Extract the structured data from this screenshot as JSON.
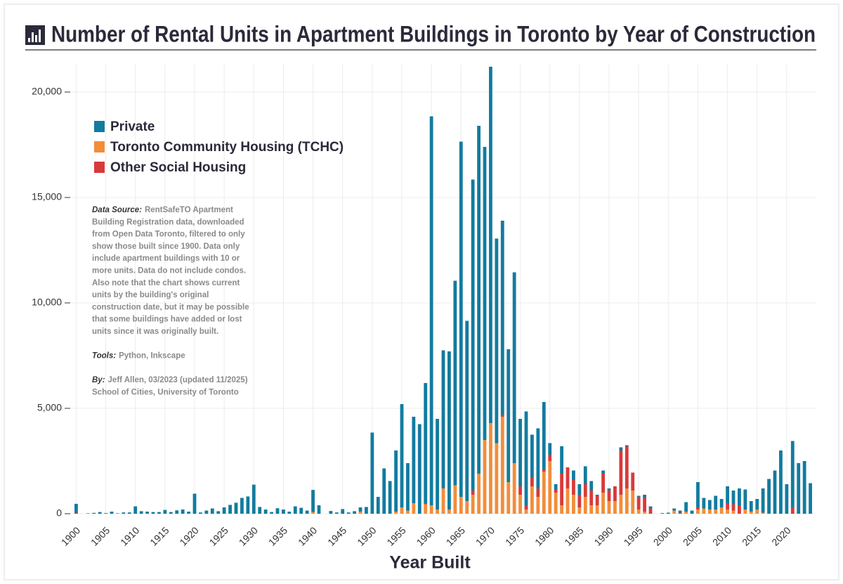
{
  "chart_data": {
    "type": "stacked_bar",
    "title": "Number of Rental Units in Apartment Buildings in Toronto by Year of Construction",
    "x_label": "Year Built",
    "x": [
      1900,
      1901,
      1902,
      1903,
      1904,
      1905,
      1906,
      1907,
      1908,
      1909,
      1910,
      1911,
      1912,
      1913,
      1914,
      1915,
      1916,
      1917,
      1918,
      1919,
      1920,
      1921,
      1922,
      1923,
      1924,
      1925,
      1926,
      1927,
      1928,
      1929,
      1930,
      1931,
      1932,
      1933,
      1934,
      1935,
      1936,
      1937,
      1938,
      1939,
      1940,
      1941,
      1942,
      1943,
      1944,
      1945,
      1946,
      1947,
      1948,
      1949,
      1950,
      1951,
      1952,
      1953,
      1954,
      1955,
      1956,
      1957,
      1958,
      1959,
      1960,
      1961,
      1962,
      1963,
      1964,
      1965,
      1966,
      1967,
      1968,
      1969,
      1970,
      1971,
      1972,
      1973,
      1974,
      1975,
      1976,
      1977,
      1978,
      1979,
      1980,
      1981,
      1982,
      1983,
      1984,
      1985,
      1986,
      1987,
      1988,
      1989,
      1990,
      1991,
      1992,
      1993,
      1994,
      1995,
      1996,
      1997,
      1998,
      1999,
      2000,
      2001,
      2002,
      2003,
      2004,
      2005,
      2006,
      2007,
      2008,
      2009,
      2010,
      2011,
      2012,
      2013,
      2014,
      2015,
      2016,
      2017,
      2018,
      2019,
      2020,
      2021,
      2022,
      2023,
      2024
    ],
    "series": [
      {
        "name": "Private",
        "color": "#127b9f",
        "values": [
          420,
          0,
          20,
          40,
          80,
          30,
          100,
          20,
          60,
          60,
          350,
          120,
          100,
          80,
          80,
          180,
          80,
          160,
          200,
          100,
          950,
          60,
          150,
          250,
          120,
          300,
          420,
          520,
          750,
          820,
          1380,
          320,
          200,
          80,
          260,
          200,
          100,
          350,
          280,
          150,
          1050,
          400,
          0,
          130,
          60,
          220,
          60,
          120,
          200,
          320,
          3850,
          800,
          2150,
          1550,
          2900,
          4900,
          2250,
          4100,
          4250,
          5700,
          18450,
          4300,
          6550,
          7500,
          9700,
          16850,
          8550,
          14750,
          16500,
          13900,
          16900,
          9700,
          9200,
          6300,
          9050,
          3200,
          4450,
          2050,
          2850,
          3200,
          550,
          250,
          1300,
          0,
          450,
          500,
          850,
          450,
          50,
          150,
          100,
          0,
          150,
          50,
          0,
          50,
          150,
          100,
          0,
          30,
          50,
          100,
          100,
          450,
          150,
          1200,
          500,
          450,
          650,
          400,
          800,
          650,
          800,
          950,
          500,
          500,
          1150,
          1650,
          2050,
          3000,
          1400,
          3150,
          2400,
          2500,
          1450
        ]
      },
      {
        "name": "Toronto Community Housing (TCHC)",
        "color": "#f28d3a",
        "values": [
          0,
          0,
          0,
          0,
          0,
          0,
          0,
          0,
          0,
          0,
          0,
          0,
          0,
          0,
          0,
          0,
          0,
          0,
          0,
          0,
          0,
          0,
          0,
          0,
          0,
          0,
          0,
          0,
          0,
          0,
          0,
          0,
          0,
          0,
          0,
          0,
          0,
          0,
          0,
          0,
          80,
          0,
          0,
          0,
          0,
          0,
          0,
          0,
          100,
          0,
          0,
          0,
          0,
          0,
          100,
          300,
          150,
          500,
          0,
          450,
          400,
          200,
          1200,
          200,
          1350,
          800,
          600,
          900,
          1900,
          3500,
          4300,
          3350,
          4600,
          1500,
          2400,
          900,
          200,
          1300,
          800,
          2000,
          2500,
          1000,
          400,
          1200,
          900,
          300,
          800,
          400,
          400,
          1000,
          600,
          600,
          900,
          1200,
          1100,
          200,
          100,
          0,
          0,
          0,
          0,
          150,
          0,
          100,
          0,
          200,
          250,
          200,
          200,
          300,
          200,
          150,
          0,
          200,
          100,
          200,
          50,
          0,
          0,
          0,
          0,
          0,
          0,
          0,
          0
        ]
      },
      {
        "name": "Other Social Housing",
        "color": "#d83a3a",
        "values": [
          50,
          0,
          0,
          0,
          0,
          0,
          0,
          0,
          0,
          0,
          0,
          0,
          0,
          0,
          0,
          0,
          0,
          0,
          0,
          0,
          0,
          0,
          0,
          0,
          0,
          0,
          0,
          0,
          0,
          0,
          0,
          0,
          0,
          0,
          0,
          0,
          0,
          0,
          0,
          0,
          0,
          0,
          0,
          0,
          0,
          0,
          0,
          0,
          0,
          0,
          0,
          0,
          0,
          0,
          0,
          0,
          0,
          0,
          0,
          50,
          0,
          0,
          0,
          0,
          0,
          0,
          0,
          200,
          0,
          0,
          0,
          0,
          100,
          0,
          0,
          400,
          200,
          400,
          400,
          100,
          300,
          150,
          1500,
          1000,
          700,
          600,
          600,
          700,
          450,
          900,
          500,
          700,
          2100,
          2000,
          850,
          600,
          650,
          250,
          0,
          0,
          0,
          0,
          50,
          0,
          0,
          100,
          0,
          0,
          0,
          0,
          300,
          300,
          400,
          0,
          0,
          0,
          0,
          0,
          0,
          0,
          0,
          300,
          0,
          0,
          0
        ]
      }
    ],
    "xlim": [
      1899,
      2025
    ],
    "xticks": [
      1900,
      1905,
      1910,
      1915,
      1920,
      1925,
      1930,
      1935,
      1940,
      1945,
      1950,
      1955,
      1960,
      1965,
      1970,
      1975,
      1980,
      1985,
      1990,
      1995,
      2000,
      2005,
      2010,
      2015,
      2020
    ],
    "ylim": [
      0,
      21300
    ],
    "yticks": [
      0,
      {
        "value": 5000,
        "label": "5,000"
      },
      {
        "value": 10000,
        "label": "10,000"
      },
      {
        "value": 15000,
        "label": "15,000"
      },
      {
        "value": 20000,
        "label": "20,000"
      }
    ],
    "grid": true,
    "legend": "upper left",
    "notes": [
      {
        "label": "Data Source:",
        "lines": [
          "RentSafeTO Apartment",
          "Building Registration data, downloaded",
          "from Open Data Toronto, filtered to only",
          "show those built since 1900. Data only",
          "include apartment buildings with 10 or",
          "more units. Data do not include condos.",
          "Also note that the chart shows current",
          "units by the building's original",
          "construction date, but it may be possible",
          "that some buildings have added or lost",
          "units since it was originally built."
        ]
      },
      {
        "label": "Tools:",
        "lines": [
          "Python, Inkscape"
        ]
      },
      {
        "label": "By:",
        "lines": [
          "Jeff Allen, 03/2023 (updated 11/2025)",
          "School of Cities, University of Toronto"
        ]
      }
    ]
  }
}
